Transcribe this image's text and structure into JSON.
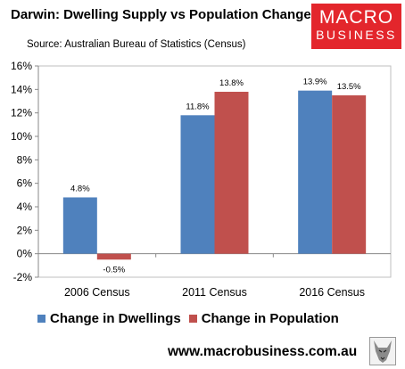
{
  "header": {
    "title": "Darwin: Dwelling Supply vs Population Change",
    "source": "Source: Australian Bureau of Statistics (Census)"
  },
  "logo": {
    "line1": "MACRO",
    "line2": "BUSINESS",
    "color": "#e3262c"
  },
  "footer": {
    "url": "www.macrobusiness.com.au"
  },
  "colors": {
    "dwellings": "#4f81bd",
    "population": "#c0504d",
    "brand": "#e3262c"
  },
  "chart_data": {
    "type": "bar",
    "categories": [
      "2006 Census",
      "2011 Census",
      "2016 Census"
    ],
    "series": [
      {
        "name": "Change in Dwellings",
        "values": [
          4.8,
          11.8,
          13.9
        ],
        "labels": [
          "4.8%",
          "11.8%",
          "13.9%"
        ],
        "color": "#4f81bd"
      },
      {
        "name": "Change in Population",
        "values": [
          -0.5,
          13.8,
          13.5
        ],
        "labels": [
          "-0.5%",
          "13.8%",
          "13.5%"
        ],
        "color": "#c0504d"
      }
    ],
    "ylim": [
      -2,
      16
    ],
    "yticks": [
      -2,
      0,
      2,
      4,
      6,
      8,
      10,
      12,
      14,
      16
    ],
    "ytick_labels": [
      "-2%",
      "0%",
      "2%",
      "4%",
      "6%",
      "8%",
      "10%",
      "12%",
      "14%",
      "16%"
    ],
    "grid": false,
    "legend": "bottom"
  }
}
